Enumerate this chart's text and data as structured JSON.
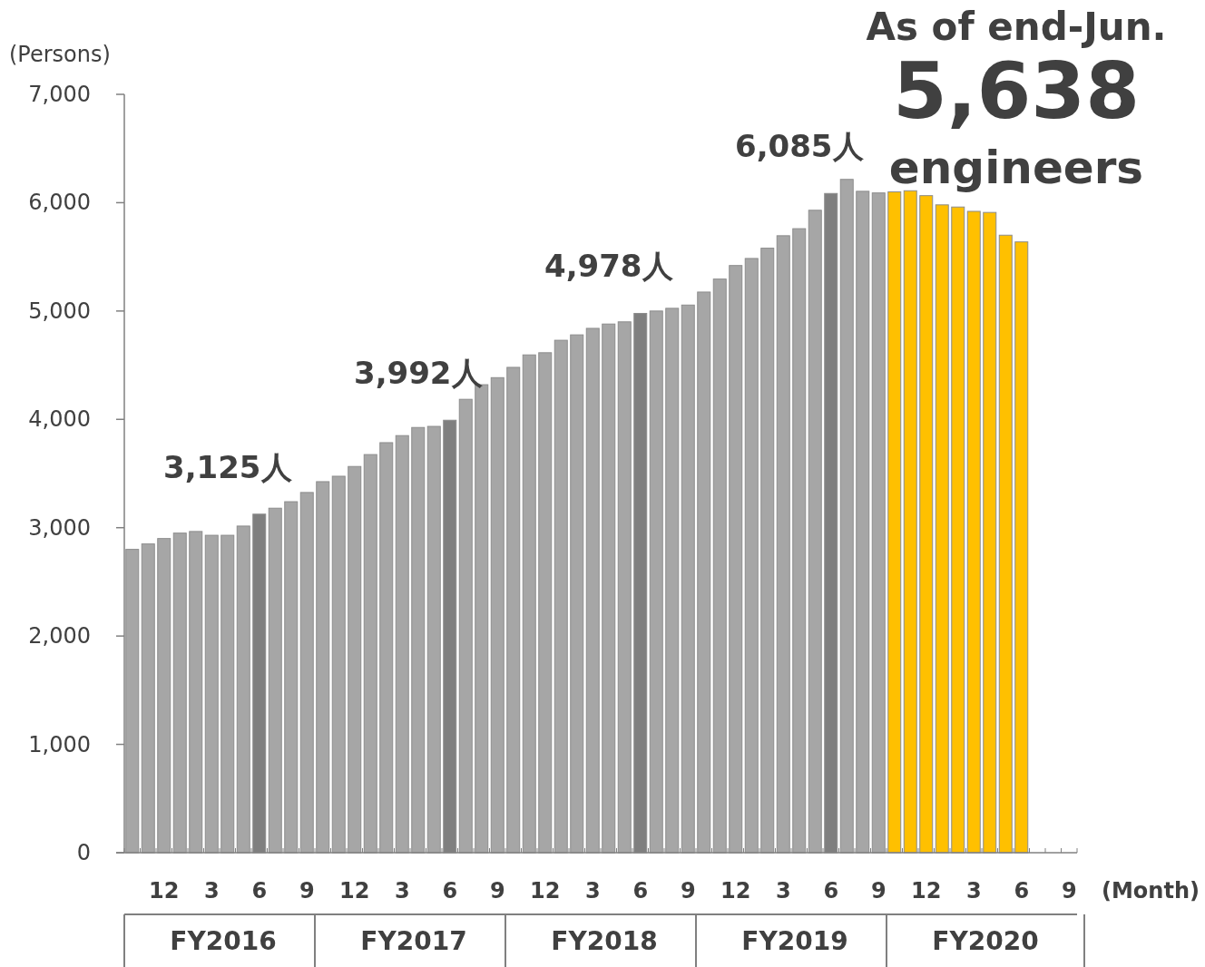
{
  "chart_data": {
    "type": "bar",
    "ylabel": "(Persons)",
    "xlabel": "(Month)",
    "annotations": [
      "As of end-Jun.",
      "5,638",
      "engineers",
      "FY2016",
      "FY2017",
      "FY2018",
      "FY2019",
      "FY2020"
    ],
    "categories": [
      null,
      null,
      "12",
      null,
      null,
      "3",
      null,
      null,
      "6",
      null,
      null,
      "9",
      null,
      null,
      "12",
      null,
      null,
      "3",
      null,
      null,
      "6",
      null,
      null,
      "9",
      null,
      null,
      "12",
      null,
      null,
      "3",
      null,
      null,
      "6",
      null,
      null,
      "9",
      null,
      null,
      "12",
      null,
      null,
      "3",
      null,
      null,
      "6",
      null,
      null,
      "9",
      null,
      null,
      "12",
      null,
      null,
      "3",
      null,
      null,
      "6",
      null,
      null,
      "9"
    ],
    "values": [
      2800,
      2850,
      2900,
      2950,
      2965,
      2930,
      2930,
      3015,
      3125,
      3180,
      3240,
      3325,
      3425,
      3475,
      3565,
      3675,
      3785,
      3850,
      3925,
      3935,
      3992,
      4185,
      4320,
      4385,
      4480,
      4595,
      4615,
      4730,
      4780,
      4840,
      4880,
      4900,
      4978,
      5000,
      5025,
      5055,
      5175,
      5295,
      5420,
      5485,
      5580,
      5695,
      5760,
      5930,
      6085,
      6215,
      6105,
      6090,
      6100,
      6110,
      6065,
      5980,
      5960,
      5920,
      5910,
      5700,
      5638,
      null,
      null,
      null
    ],
    "colors": [
      "#a6a6a6",
      "#a6a6a6",
      "#a6a6a6",
      "#a6a6a6",
      "#a6a6a6",
      "#a6a6a6",
      "#a6a6a6",
      "#a6a6a6",
      "#7f7f7f",
      "#a6a6a6",
      "#a6a6a6",
      "#a6a6a6",
      "#a6a6a6",
      "#a6a6a6",
      "#a6a6a6",
      "#a6a6a6",
      "#a6a6a6",
      "#a6a6a6",
      "#a6a6a6",
      "#a6a6a6",
      "#7f7f7f",
      "#a6a6a6",
      "#a6a6a6",
      "#a6a6a6",
      "#a6a6a6",
      "#a6a6a6",
      "#a6a6a6",
      "#a6a6a6",
      "#a6a6a6",
      "#a6a6a6",
      "#a6a6a6",
      "#a6a6a6",
      "#7f7f7f",
      "#a6a6a6",
      "#a6a6a6",
      "#a6a6a6",
      "#a6a6a6",
      "#a6a6a6",
      "#a6a6a6",
      "#a6a6a6",
      "#a6a6a6",
      "#a6a6a6",
      "#a6a6a6",
      "#a6a6a6",
      "#7f7f7f",
      "#a6a6a6",
      "#a6a6a6",
      "#a6a6a6",
      "#ffc000",
      "#ffc000",
      "#ffc000",
      "#ffc000",
      "#ffc000",
      "#ffc000",
      "#ffc000",
      "#ffc000",
      "#ffc000",
      null,
      null,
      null
    ],
    "value_labels": [
      null,
      null,
      null,
      null,
      null,
      null,
      null,
      null,
      "3,125人",
      null,
      null,
      null,
      null,
      null,
      null,
      null,
      null,
      null,
      null,
      null,
      "3,992人",
      null,
      null,
      null,
      null,
      null,
      null,
      null,
      null,
      null,
      null,
      null,
      "4,978人",
      null,
      null,
      null,
      null,
      null,
      null,
      null,
      null,
      null,
      null,
      null,
      "6,085人",
      null,
      null,
      null,
      null,
      null,
      null,
      null,
      null,
      null,
      null,
      null,
      null,
      null,
      null,
      null
    ],
    "ylim": [
      0,
      7000
    ],
    "yticks": [
      0,
      {
        "value": 1000,
        "label": "1,000"
      },
      {
        "value": 2000,
        "label": "2,000"
      },
      {
        "value": 3000,
        "label": "3,000"
      },
      {
        "value": 4000,
        "label": "4,000"
      },
      {
        "value": 5000,
        "label": "5,000"
      },
      {
        "value": 6000,
        "label": "6,000"
      },
      {
        "value": 7000,
        "label": "7,000"
      }
    ]
  }
}
